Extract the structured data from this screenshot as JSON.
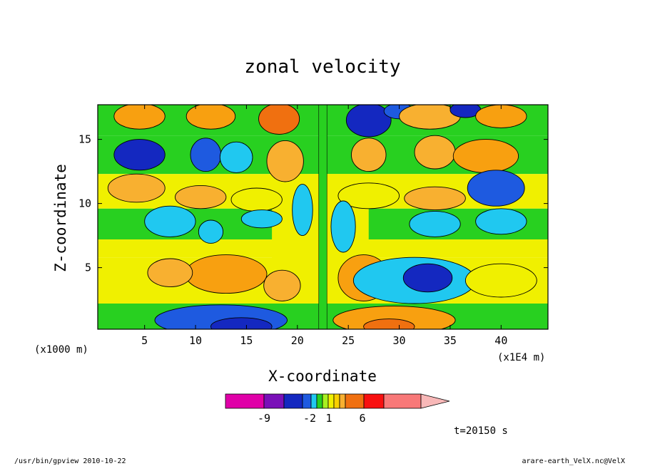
{
  "chart_data": {
    "type": "heatmap",
    "title": "zonal velocity",
    "xlabel": "X-coordinate",
    "ylabel": "Z-coordinate",
    "x_unit_left": "(x1000 m)",
    "x_unit_right": "(x1E4 m)",
    "xlim": [
      0.4,
      44.6
    ],
    "ylim": [
      0.2,
      17.7
    ],
    "x_ticks": [
      5,
      10,
      15,
      20,
      25,
      30,
      35,
      40
    ],
    "y_ticks": [
      5,
      10,
      15
    ],
    "time_label": "t=20150 s",
    "colorbar": {
      "colors": [
        "#e000a8",
        "#7a10b8",
        "#1428c0",
        "#1e5ae0",
        "#20c8f0",
        "#28d020",
        "#a8f020",
        "#f0f000",
        "#f8d000",
        "#f8b030",
        "#f07010",
        "#f81010",
        "#f87878",
        "#f8b8b8"
      ],
      "tick_labels": [
        "-9",
        "-2",
        "1",
        "6"
      ]
    },
    "blobs": [
      {
        "x": 11.5,
        "z": 16.8,
        "r": [
          2.4,
          1.0
        ],
        "v": 3
      },
      {
        "x": 18.2,
        "z": 16.6,
        "r": [
          2.0,
          1.2
        ],
        "v": 4
      },
      {
        "x": 4.5,
        "z": 16.8,
        "r": [
          2.5,
          1.0
        ],
        "v": 3
      },
      {
        "x": 27.0,
        "z": 16.5,
        "r": [
          2.2,
          1.3
        ],
        "v": -4
      },
      {
        "x": 30.0,
        "z": 17.2,
        "r": [
          1.5,
          0.6
        ],
        "v": -3
      },
      {
        "x": 33.0,
        "z": 16.8,
        "r": [
          3.0,
          1.0
        ],
        "v": 2
      },
      {
        "x": 36.5,
        "z": 17.3,
        "r": [
          1.5,
          0.6
        ],
        "v": -4
      },
      {
        "x": 40.0,
        "z": 16.8,
        "r": [
          2.5,
          0.9
        ],
        "v": 3
      },
      {
        "x": 4.5,
        "z": 13.8,
        "r": [
          2.5,
          1.2
        ],
        "v": -4
      },
      {
        "x": 11.0,
        "z": 13.8,
        "r": [
          1.5,
          1.3
        ],
        "v": -3
      },
      {
        "x": 14.0,
        "z": 13.6,
        "r": [
          1.6,
          1.2
        ],
        "v": -1
      },
      {
        "x": 18.8,
        "z": 13.3,
        "r": [
          1.8,
          1.6
        ],
        "v": 2
      },
      {
        "x": 27.0,
        "z": 13.8,
        "r": [
          1.7,
          1.3
        ],
        "v": 2
      },
      {
        "x": 33.5,
        "z": 14.0,
        "r": [
          2.0,
          1.3
        ],
        "v": 2
      },
      {
        "x": 38.5,
        "z": 13.7,
        "r": [
          3.2,
          1.3
        ],
        "v": 3
      },
      {
        "x": 4.2,
        "z": 11.2,
        "r": [
          2.8,
          1.1
        ],
        "v": 2
      },
      {
        "x": 10.5,
        "z": 10.5,
        "r": [
          2.5,
          0.9
        ],
        "v": 2
      },
      {
        "x": 16.0,
        "z": 10.3,
        "r": [
          2.5,
          0.9
        ],
        "v": 1
      },
      {
        "x": 27.0,
        "z": 10.6,
        "r": [
          3.0,
          1.0
        ],
        "v": 1
      },
      {
        "x": 33.5,
        "z": 10.4,
        "r": [
          3.0,
          0.9
        ],
        "v": 2
      },
      {
        "x": 39.5,
        "z": 11.2,
        "r": [
          2.8,
          1.4
        ],
        "v": -3
      },
      {
        "x": 7.5,
        "z": 8.6,
        "r": [
          2.5,
          1.2
        ],
        "v": -1
      },
      {
        "x": 11.5,
        "z": 7.8,
        "r": [
          1.2,
          0.9
        ],
        "v": -1
      },
      {
        "x": 16.5,
        "z": 8.8,
        "r": [
          2.0,
          0.7
        ],
        "v": -1
      },
      {
        "x": 33.5,
        "z": 8.4,
        "r": [
          2.5,
          1.0
        ],
        "v": -1
      },
      {
        "x": 40.0,
        "z": 8.6,
        "r": [
          2.5,
          1.0
        ],
        "v": -1
      },
      {
        "x": 13.0,
        "z": 4.5,
        "r": [
          4.0,
          1.5
        ],
        "v": 3
      },
      {
        "x": 7.5,
        "z": 4.6,
        "r": [
          2.2,
          1.1
        ],
        "v": 2
      },
      {
        "x": 18.5,
        "z": 3.6,
        "r": [
          1.8,
          1.2
        ],
        "v": 2
      },
      {
        "x": 26.5,
        "z": 4.2,
        "r": [
          2.5,
          1.8
        ],
        "v": 3
      },
      {
        "x": 31.5,
        "z": 4.0,
        "r": [
          6.0,
          1.8
        ],
        "v": -1
      },
      {
        "x": 32.8,
        "z": 4.2,
        "r": [
          2.4,
          1.1
        ],
        "v": -4
      },
      {
        "x": 40.0,
        "z": 4.0,
        "r": [
          3.5,
          1.3
        ],
        "v": 1
      },
      {
        "x": 12.5,
        "z": 0.9,
        "r": [
          6.5,
          1.2
        ],
        "v": -3
      },
      {
        "x": 14.5,
        "z": 0.4,
        "r": [
          3.0,
          0.7
        ],
        "v": -4
      },
      {
        "x": 29.5,
        "z": 0.9,
        "r": [
          6.0,
          1.1
        ],
        "v": 3
      },
      {
        "x": 29.0,
        "z": 0.4,
        "r": [
          2.5,
          0.6
        ],
        "v": 4
      },
      {
        "x": 24.5,
        "z": 8.2,
        "r": [
          1.2,
          2.0
        ],
        "v": -1
      },
      {
        "x": 20.5,
        "z": 9.5,
        "r": [
          1.0,
          2.0
        ],
        "v": -1
      }
    ]
  },
  "footer": {
    "left": "/usr/bin/gpview  2010-10-22",
    "right": "arare-earth_VelX.nc@VelX"
  }
}
